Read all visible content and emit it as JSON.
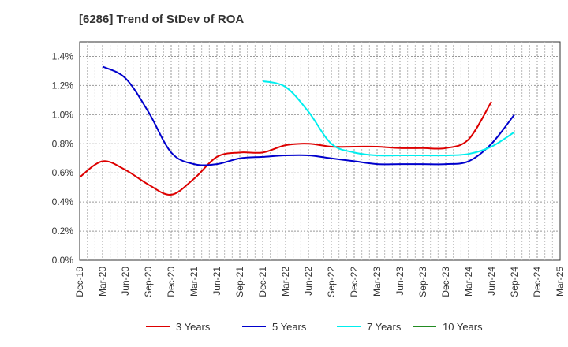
{
  "chart_data": {
    "type": "line",
    "title": "[6286]  Trend of StDev of ROA",
    "xlabel": "",
    "ylabel": "",
    "categories": [
      "Dec-19",
      "Mar-20",
      "Jun-20",
      "Sep-20",
      "Dec-20",
      "Mar-21",
      "Jun-21",
      "Sep-21",
      "Dec-21",
      "Mar-22",
      "Jun-22",
      "Sep-22",
      "Dec-22",
      "Mar-23",
      "Jun-23",
      "Sep-23",
      "Dec-23",
      "Mar-24",
      "Jun-24",
      "Sep-24",
      "Dec-24",
      "Mar-25"
    ],
    "y_ticks": [
      "0.0%",
      "0.2%",
      "0.4%",
      "0.6%",
      "0.8%",
      "1.0%",
      "1.2%",
      "1.4%"
    ],
    "ylim": [
      0,
      1.5
    ],
    "grid": true,
    "legend_position": "bottom",
    "series": [
      {
        "name": "3 Years",
        "color": "#dd0000",
        "values": [
          0.57,
          0.68,
          0.62,
          0.52,
          0.45,
          0.56,
          0.71,
          0.74,
          0.74,
          0.79,
          0.8,
          0.78,
          0.78,
          0.78,
          0.77,
          0.77,
          0.77,
          0.83,
          1.09,
          null,
          null,
          null
        ]
      },
      {
        "name": "5 Years",
        "color": "#0000cc",
        "values": [
          null,
          1.33,
          1.25,
          1.02,
          0.74,
          0.66,
          0.66,
          0.7,
          0.71,
          0.72,
          0.72,
          0.7,
          0.68,
          0.66,
          0.66,
          0.66,
          0.66,
          0.68,
          0.8,
          1.0,
          null,
          null
        ]
      },
      {
        "name": "7 Years",
        "color": "#00eeee",
        "values": [
          null,
          null,
          null,
          null,
          null,
          null,
          null,
          null,
          1.23,
          1.19,
          1.02,
          0.8,
          0.74,
          0.72,
          0.72,
          0.72,
          0.72,
          0.73,
          0.78,
          0.88,
          null,
          null
        ]
      },
      {
        "name": "10 Years",
        "color": "#228b22",
        "values": [
          null,
          null,
          null,
          null,
          null,
          null,
          null,
          null,
          null,
          null,
          null,
          null,
          null,
          null,
          null,
          null,
          null,
          null,
          null,
          null,
          null,
          null
        ]
      }
    ]
  }
}
